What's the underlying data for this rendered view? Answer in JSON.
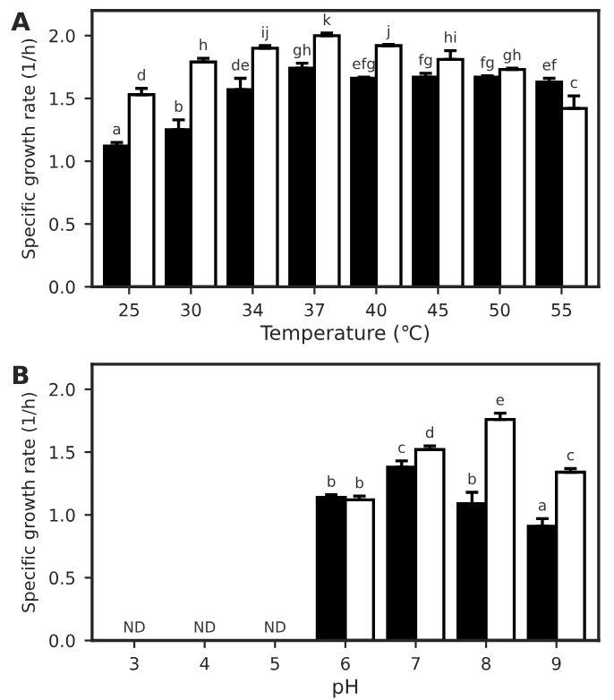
{
  "chart_data": [
    {
      "type": "bar",
      "title": "A",
      "xlabel": "Temperature (℃)",
      "ylabel": "Specific growth rate (1/h)",
      "categories": [
        "25",
        "30",
        "34",
        "37",
        "40",
        "45",
        "50",
        "55"
      ],
      "series": [
        {
          "color": "#000000",
          "values": [
            1.12,
            1.25,
            1.57,
            1.74,
            1.66,
            1.67,
            1.67,
            1.63
          ],
          "errors": [
            0.03,
            0.08,
            0.09,
            0.04,
            0.01,
            0.03,
            0.01,
            0.03
          ]
        },
        {
          "color": "#ffffff",
          "values": [
            1.53,
            1.79,
            1.9,
            2.0,
            1.92,
            1.81,
            1.73,
            1.42
          ],
          "errors": [
            0.05,
            0.03,
            0.02,
            0.02,
            0.01,
            0.07,
            0.01,
            0.1
          ]
        }
      ],
      "ylim": [
        0,
        2.2
      ],
      "yticks": [
        {
          "value": 0,
          "label": "0.0"
        },
        {
          "value": 0.5,
          "label": "0.5"
        },
        {
          "value": 1,
          "label": "1.0"
        },
        {
          "value": 1.5,
          "label": "1.5"
        },
        {
          "value": 2,
          "label": "2.0"
        }
      ],
      "grid": false,
      "legend": false,
      "annotations": [
        {
          "text": "a",
          "x": "25",
          "y": 1.15
        },
        {
          "text": "d",
          "x": "25",
          "y": 1.58
        },
        {
          "text": "b",
          "x": "30",
          "y": 1.33
        },
        {
          "text": "h",
          "x": "30",
          "y": 1.82
        },
        {
          "text": "de",
          "x": "34",
          "y": 1.66
        },
        {
          "text": "ij",
          "x": "34",
          "y": 1.92
        },
        {
          "text": "gh",
          "x": "37",
          "y": 1.78
        },
        {
          "text": "k",
          "x": "37",
          "y": 2.02
        },
        {
          "text": "efg",
          "x": "40",
          "y": 1.67
        },
        {
          "text": "j",
          "x": "40",
          "y": 1.93
        },
        {
          "text": "fg",
          "x": "45",
          "y": 1.7
        },
        {
          "text": "hi",
          "x": "45",
          "y": 1.88
        },
        {
          "text": "fg",
          "x": "50",
          "y": 1.68
        },
        {
          "text": "gh",
          "x": "50",
          "y": 1.74
        },
        {
          "text": "ef",
          "x": "55",
          "y": 1.66
        },
        {
          "text": "c",
          "x": "55",
          "y": 1.52
        }
      ]
    },
    {
      "type": "bar",
      "title": "B",
      "xlabel": "pH",
      "ylabel": "Specific growth rate (1/h)",
      "categories": [
        "3",
        "4",
        "5",
        "6",
        "7",
        "8",
        "9"
      ],
      "series": [
        {
          "color": "#000000",
          "values": [
            null,
            null,
            null,
            1.14,
            1.38,
            1.09,
            0.91
          ],
          "errors": [
            null,
            null,
            null,
            0.02,
            0.05,
            0.09,
            0.06
          ]
        },
        {
          "color": "#ffffff",
          "values": [
            null,
            null,
            null,
            1.12,
            1.52,
            1.76,
            1.34
          ],
          "errors": [
            null,
            null,
            null,
            0.03,
            0.03,
            0.05,
            0.03
          ]
        }
      ],
      "ylim": [
        0,
        2.2
      ],
      "yticks": [
        {
          "value": 0,
          "label": "0.0"
        },
        {
          "value": 0.5,
          "label": "0.5"
        },
        {
          "value": 1,
          "label": "1.0"
        },
        {
          "value": 1.5,
          "label": "1.5"
        },
        {
          "value": 2,
          "label": "2.0"
        }
      ],
      "grid": false,
      "legend": false,
      "annotations": [
        "ND",
        "ND",
        "ND",
        {
          "text": "b",
          "x": "6",
          "y": 1.16
        },
        {
          "text": "b",
          "x": "6",
          "y": 1.15
        },
        {
          "text": "c",
          "x": "7",
          "y": 1.43
        },
        {
          "text": "d",
          "x": "7",
          "y": 1.55
        },
        {
          "text": "b",
          "x": "8",
          "y": 1.18
        },
        {
          "text": "e",
          "x": "8",
          "y": 1.81
        },
        {
          "text": "a",
          "x": "9",
          "y": 0.97
        },
        {
          "text": "c",
          "x": "9",
          "y": 1.37
        }
      ]
    }
  ]
}
